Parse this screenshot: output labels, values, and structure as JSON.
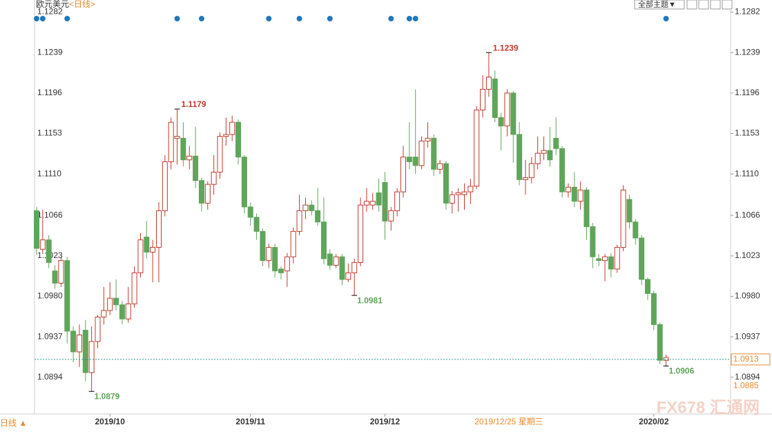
{
  "chart_data": {
    "type": "candlestick",
    "title": "欧元美元",
    "subtitle": "<日线>",
    "theme_button": "全部主题▼",
    "bottom_left": "日线 ▲",
    "cursor_date": "2019/12/25 星期三",
    "watermark": "FX678 汇通网",
    "open": [
      1.1071,
      1.103,
      1.104,
      1.1007,
      1.0994,
      1.1018,
      1.0943,
      1.0921,
      1.0944,
      1.0899,
      1.0932,
      1.0958,
      1.0965,
      1.0978,
      1.0971,
      1.0956,
      1.0972,
      1.1005,
      1.1043,
      1.1027,
      1.1032,
      1.1071,
      1.1123,
      1.1148,
      1.1148,
      1.1125,
      1.1129,
      1.1103,
      1.1079,
      1.1099,
      1.1112,
      1.115,
      1.1152,
      1.1165,
      1.1128,
      1.1075,
      1.1064,
      1.1049,
      1.1018,
      1.1032,
      1.1009,
      1.1007,
      1.1022,
      1.1049,
      1.1071,
      1.1077,
      1.1071,
      1.1059,
      1.1025,
      1.1013,
      1.1022,
      1.0998,
      1.1005,
      1.1016,
      1.1077,
      1.1077,
      1.109,
      1.1101,
      1.106,
      1.1071,
      1.1091,
      1.1128,
      1.1128,
      1.1119,
      1.1145,
      1.1148,
      1.1115,
      1.1121,
      1.1079,
      1.1088,
      1.1088,
      1.1091,
      1.1097,
      1.1178,
      1.12,
      1.1211,
      1.117,
      1.1161,
      1.1196,
      1.1152,
      1.1104,
      1.1106,
      1.1121,
      1.1132,
      1.1135,
      1.1148,
      1.1137,
      1.1091,
      1.1096,
      1.1081,
      1.1093,
      1.1054,
      1.102,
      1.1018,
      1.1022,
      1.1009,
      1.1032,
      1.1083,
      1.1059,
      1.1042,
      1.0998,
      1.0983,
      1.095,
      1.0912
    ],
    "high": [
      1.1075,
      1.1072,
      1.1045,
      1.1013,
      1.1022,
      1.1022,
      1.0948,
      1.095,
      1.0955,
      1.0948,
      1.096,
      1.099,
      1.0995,
      1.0998,
      1.0975,
      1.099,
      1.1012,
      1.1047,
      1.106,
      1.104,
      1.108,
      1.113,
      1.117,
      1.1179,
      1.1165,
      1.114,
      1.116,
      1.1106,
      1.1102,
      1.113,
      1.1154,
      1.117,
      1.1172,
      1.1168,
      1.113,
      1.108,
      1.1068,
      1.1052,
      1.1036,
      1.1036,
      1.1012,
      1.1026,
      1.1053,
      1.1088,
      1.1085,
      1.1082,
      1.1095,
      1.1085,
      1.103,
      1.1025,
      1.1025,
      1.1015,
      1.102,
      1.1085,
      1.1095,
      1.109,
      1.1105,
      1.1112,
      1.1075,
      1.1095,
      1.114,
      1.1165,
      1.12,
      1.115,
      1.1165,
      1.1152,
      1.1125,
      1.1124,
      1.1092,
      1.1095,
      1.11,
      1.1105,
      1.1182,
      1.1215,
      1.1239,
      1.122,
      1.1175,
      1.12,
      1.1198,
      1.1165,
      1.1125,
      1.1128,
      1.115,
      1.115,
      1.116,
      1.117,
      1.114,
      1.11,
      1.1112,
      1.1102,
      1.1096,
      1.1058,
      1.1025,
      1.1025,
      1.1026,
      1.1035,
      1.1098,
      1.1088,
      1.1062,
      1.1045,
      1.1,
      1.0986,
      1.0952,
      1.0918
    ],
    "low": [
      1.1024,
      1.1025,
      1.101,
      1.0988,
      1.099,
      1.093,
      1.091,
      1.0905,
      1.089,
      1.0879,
      1.0925,
      1.095,
      1.096,
      1.0965,
      1.095,
      1.0952,
      1.0968,
      1.1,
      1.102,
      1.0995,
      1.0995,
      1.1065,
      1.1115,
      1.112,
      1.1118,
      1.1115,
      1.1095,
      1.107,
      1.1072,
      1.1088,
      1.1105,
      1.114,
      1.1145,
      1.112,
      1.1068,
      1.1055,
      1.104,
      1.1012,
      1.101,
      1.1,
      1.0998,
      1.099,
      1.1015,
      1.1045,
      1.1062,
      1.1066,
      1.1055,
      1.1014,
      1.1008,
      1.101,
      1.0992,
      1.0995,
      1.0981,
      1.1012,
      1.107,
      1.1072,
      1.107,
      1.104,
      1.105,
      1.1065,
      1.1085,
      1.1115,
      1.111,
      1.1115,
      1.1138,
      1.1108,
      1.111,
      1.1072,
      1.1068,
      1.107,
      1.1072,
      1.1078,
      1.1094,
      1.117,
      1.1192,
      1.1165,
      1.1135,
      1.115,
      1.1122,
      1.1098,
      1.1088,
      1.11,
      1.1115,
      1.1125,
      1.1118,
      1.113,
      1.1085,
      1.1085,
      1.1075,
      1.1072,
      1.104,
      1.101,
      1.1012,
      1.0996,
      1.1,
      1.1005,
      1.1028,
      1.1052,
      1.1035,
      1.0992,
      1.0976,
      1.0944,
      1.0908,
      1.0906
    ],
    "close": [
      1.1031,
      1.104,
      1.1016,
      1.0994,
      1.1018,
      1.0943,
      1.0921,
      1.0939,
      1.0899,
      1.0932,
      1.0958,
      1.0965,
      1.0978,
      1.0971,
      1.0956,
      1.0972,
      1.1005,
      1.104,
      1.1027,
      1.1032,
      1.1071,
      1.1123,
      1.1165,
      1.115,
      1.1125,
      1.1129,
      1.1103,
      1.1079,
      1.1099,
      1.1112,
      1.115,
      1.1152,
      1.1165,
      1.1128,
      1.1075,
      1.1064,
      1.1049,
      1.1018,
      1.1032,
      1.1007,
      1.1005,
      1.1022,
      1.1049,
      1.1071,
      1.1077,
      1.1071,
      1.1059,
      1.102,
      1.1013,
      1.1022,
      1.0998,
      1.1005,
      1.1016,
      1.1077,
      1.1081,
      1.1081,
      1.1077,
      1.106,
      1.1071,
      1.1091,
      1.1128,
      1.1123,
      1.1119,
      1.1145,
      1.1148,
      1.1115,
      1.1121,
      1.1079,
      1.1088,
      1.109,
      1.1091,
      1.1097,
      1.1178,
      1.12,
      1.1213,
      1.117,
      1.1161,
      1.1196,
      1.1152,
      1.1104,
      1.1106,
      1.1121,
      1.1132,
      1.1135,
      1.1125,
      1.1137,
      1.1091,
      1.1096,
      1.1081,
      1.1093,
      1.1054,
      1.1022,
      1.1018,
      1.1022,
      1.1009,
      1.1032,
      1.1093,
      1.1059,
      1.1042,
      1.0998,
      1.0983,
      1.095,
      1.0912,
      1.0915
    ],
    "up_color": "#c0392b",
    "down_color": "#5fa55a",
    "high_labels": [
      23,
      74
    ],
    "low_labels": [
      9,
      52,
      103
    ],
    "event_markers": [
      0,
      1,
      5,
      23,
      27,
      38,
      43,
      48,
      58,
      61,
      62,
      103
    ],
    "x_labels": [
      {
        "value": 12,
        "label": "2019/10"
      },
      {
        "value": 35,
        "label": "2019/11"
      },
      {
        "value": 57,
        "label": "2019/12"
      },
      {
        "value": 101,
        "label": "2020/02"
      }
    ],
    "ylim": [
      1.0855,
      1.1289
    ],
    "yticks": [
      1.0894,
      1.0937,
      {
        "value": 1.098,
        "label": "1.0980"
      },
      1.1023,
      1.1066,
      {
        "value": 1.111,
        "label": "1.1110"
      },
      1.1153,
      1.1196,
      1.1239,
      1.1282
    ],
    "current_price": 1.0913,
    "cursor_price": 1.0885
  }
}
